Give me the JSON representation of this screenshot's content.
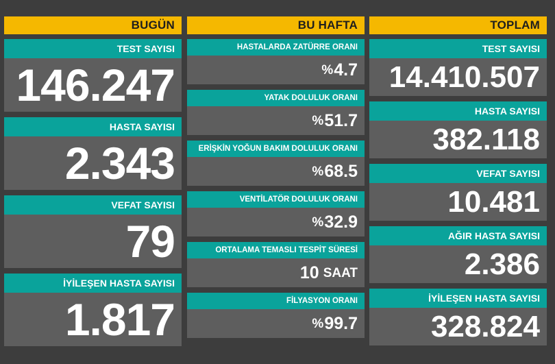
{
  "today": {
    "header": "BUGÜN",
    "cards": [
      {
        "label": "TEST SAYISI",
        "value": "146.247"
      },
      {
        "label": "HASTA SAYISI",
        "value": "2.343"
      },
      {
        "label": "VEFAT SAYISI",
        "value": "79"
      },
      {
        "label": "İYİLEŞEN HASTA SAYISI",
        "value": "1.817"
      }
    ]
  },
  "week": {
    "header": "BU HAFTA",
    "cards": [
      {
        "label": "HASTALARDA ZATÜRRE ORANI",
        "prefix": "%",
        "value": "4.7",
        "unit": ""
      },
      {
        "label": "YATAK DOLULUK ORANI",
        "prefix": "%",
        "value": "51.7",
        "unit": ""
      },
      {
        "label": "ERİŞKİN YOĞUN BAKIM DOLULUK ORANI",
        "prefix": "%",
        "value": "68.5",
        "unit": ""
      },
      {
        "label": "VENTİLATÖR DOLULUK ORANI",
        "prefix": "%",
        "value": "32.9",
        "unit": ""
      },
      {
        "label": "ORTALAMA TEMASLI TESPİT SÜRESİ",
        "prefix": "",
        "value": "10",
        "unit": "SAAT"
      },
      {
        "label": "FİLYASYON ORANI",
        "prefix": "%",
        "value": "99.7",
        "unit": ""
      }
    ]
  },
  "total": {
    "header": "TOPLAM",
    "cards": [
      {
        "label": "TEST SAYISI",
        "value": "14.410.507"
      },
      {
        "label": "HASTA SAYISI",
        "value": "382.118"
      },
      {
        "label": "VEFAT SAYISI",
        "value": "10.481"
      },
      {
        "label": "AĞIR HASTA SAYISI",
        "value": "2.386"
      },
      {
        "label": "İYİLEŞEN HASTA SAYISI",
        "value": "328.824"
      }
    ]
  }
}
